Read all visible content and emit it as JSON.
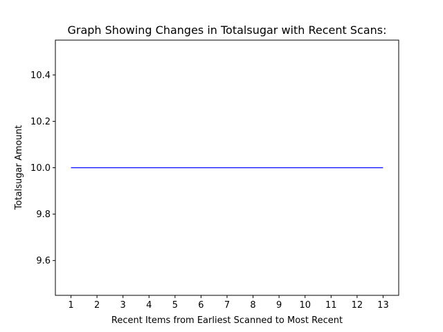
{
  "chart_data": {
    "type": "line",
    "title": "Graph Showing Changes in Totalsugar with Recent Scans:",
    "xlabel": "Recent Items from Earliest Scanned to Most Recent",
    "ylabel": "Totalsugar Amount",
    "x": [
      1,
      2,
      3,
      4,
      5,
      6,
      7,
      8,
      9,
      10,
      11,
      12,
      13
    ],
    "series": [
      {
        "values": [
          10,
          10,
          10,
          10,
          10,
          10,
          10,
          10,
          10,
          10,
          10,
          10,
          10
        ],
        "color": "#0000ff"
      }
    ],
    "xlim": [
      0.4,
      13.6
    ],
    "ylim": [
      9.45,
      10.55
    ],
    "xticks": [
      1,
      2,
      3,
      4,
      5,
      6,
      7,
      8,
      9,
      10,
      11,
      12,
      13
    ],
    "yticks": [
      9.6,
      9.8,
      10.0,
      10.2,
      10.4
    ],
    "ytick_labels": [
      "9.6",
      "9.8",
      "10.0",
      "10.2",
      "10.4"
    ],
    "grid": false,
    "legend": "none"
  }
}
